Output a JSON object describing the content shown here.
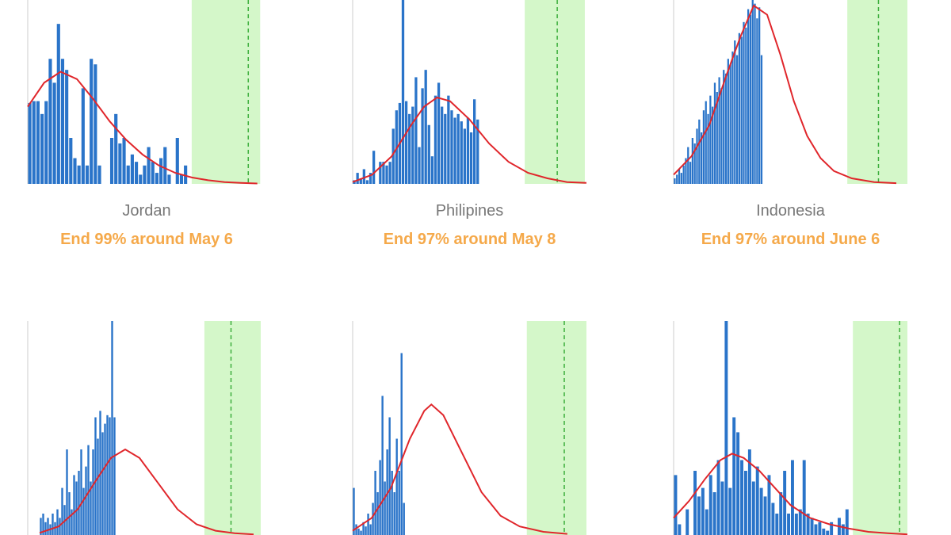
{
  "chart_data": [
    {
      "type": "bar",
      "title": "Jordan",
      "subtitle": "End 99% around May 6",
      "xlim": [
        0,
        58
      ],
      "ylim": [
        0,
        100
      ],
      "color": "#2a74c9",
      "values": [
        44,
        45,
        45,
        38,
        45,
        68,
        55,
        87,
        68,
        62,
        25,
        14,
        10,
        52,
        10,
        68,
        65,
        10,
        0,
        0,
        25,
        38,
        22,
        25,
        10,
        16,
        12,
        5,
        10,
        20,
        12,
        6,
        14,
        20,
        5,
        0,
        25,
        5,
        10,
        0
      ],
      "fit": {
        "color": "#e0262b",
        "x": [
          0,
          4,
          8,
          12,
          16,
          20,
          24,
          28,
          32,
          36,
          40,
          44,
          48,
          52,
          56
        ],
        "values": [
          42,
          55,
          61,
          57,
          46,
          34,
          24,
          16,
          10,
          6,
          3.5,
          2,
          1,
          0.5,
          0.2
        ]
      },
      "shade": [
        40,
        56.7
      ],
      "marker": 53.8
    },
    {
      "type": "bar",
      "title": "Philipines",
      "subtitle": "End 97% around May 8",
      "xlim": [
        0,
        72
      ],
      "ylim": [
        0,
        100
      ],
      "color": "#2a74c9",
      "values": [
        2,
        6,
        3,
        8,
        2,
        6,
        18,
        0,
        12,
        12,
        10,
        12,
        30,
        40,
        44,
        100,
        45,
        38,
        42,
        58,
        20,
        52,
        62,
        32,
        15,
        48,
        55,
        42,
        38,
        48,
        40,
        36,
        38,
        34,
        30,
        36,
        28,
        46,
        35,
        0
      ],
      "fit": {
        "color": "#e0262b",
        "x": [
          0,
          6,
          12,
          18,
          22,
          26,
          30,
          36,
          42,
          48,
          54,
          60,
          66,
          72
        ],
        "values": [
          1,
          5,
          15,
          32,
          42,
          47,
          45,
          35,
          22,
          12,
          6,
          3,
          1,
          0.5
        ]
      },
      "shade": [
        53,
        71.5
      ],
      "marker": 63
    },
    {
      "type": "bar",
      "title": "Indonesia",
      "subtitle": "End 97% around June 6",
      "xlim": [
        0,
        105
      ],
      "ylim": [
        0,
        100
      ],
      "color": "#2a74c9",
      "values": [
        3,
        5,
        8,
        6,
        10,
        14,
        20,
        12,
        25,
        22,
        30,
        35,
        28,
        40,
        45,
        38,
        48,
        42,
        55,
        50,
        58,
        52,
        62,
        60,
        68,
        65,
        72,
        78,
        70,
        82,
        80,
        88,
        85,
        95,
        92,
        100,
        98,
        90,
        96,
        70
      ],
      "fit": {
        "color": "#e0262b",
        "x": [
          0,
          8,
          16,
          24,
          30,
          36,
          42,
          48,
          54,
          60,
          66,
          72,
          80,
          90,
          100
        ],
        "values": [
          5,
          15,
          32,
          60,
          80,
          97,
          92,
          70,
          45,
          26,
          14,
          7,
          3,
          1,
          0.4
        ]
      },
      "shade": [
        78,
        105
      ],
      "marker": 92
    },
    {
      "type": "bar",
      "xlim": [
        -5,
        95
      ],
      "ylim": [
        0,
        100
      ],
      "color": "#2a74c9",
      "values": [
        8,
        10,
        6,
        8,
        5,
        10,
        6,
        12,
        8,
        22,
        14,
        40,
        20,
        12,
        28,
        25,
        30,
        40,
        22,
        32,
        42,
        25,
        40,
        55,
        45,
        58,
        48,
        52,
        56,
        55,
        100,
        55,
        0
      ],
      "fit": {
        "color": "#e0262b",
        "x": [
          0,
          8,
          16,
          24,
          30,
          36,
          42,
          50,
          58,
          66,
          74,
          82,
          90
        ],
        "values": [
          1,
          4,
          12,
          26,
          36,
          40,
          36,
          24,
          12,
          5,
          2,
          0.8,
          0.3
        ]
      },
      "shade": [
        69.3,
        93
      ],
      "marker": 80.5
    },
    {
      "type": "bar",
      "xlim": [
        0,
        98
      ],
      "ylim": [
        0,
        100
      ],
      "color": "#2a74c9",
      "values": [
        22,
        5,
        3,
        2,
        6,
        4,
        10,
        5,
        15,
        30,
        20,
        35,
        65,
        25,
        40,
        55,
        30,
        20,
        45,
        30,
        85,
        15
      ],
      "fit": {
        "color": "#e0262b",
        "x": [
          0,
          8,
          16,
          24,
          30,
          33,
          38,
          46,
          54,
          62,
          70,
          80,
          90
        ],
        "values": [
          2,
          8,
          22,
          45,
          58,
          61,
          56,
          38,
          20,
          9,
          4,
          1.5,
          0.5
        ]
      },
      "shade": [
        73,
        98
      ],
      "marker": 88.7
    },
    {
      "type": "bar",
      "xlim": [
        0,
        60
      ],
      "ylim": [
        0,
        100
      ],
      "color": "#2a74c9",
      "values": [
        28,
        5,
        0,
        12,
        0,
        30,
        18,
        22,
        12,
        28,
        20,
        35,
        25,
        100,
        22,
        55,
        48,
        35,
        30,
        40,
        25,
        32,
        22,
        18,
        28,
        15,
        10,
        20,
        30,
        10,
        35,
        10,
        12,
        35,
        10,
        8,
        5,
        6,
        3,
        2,
        6,
        0,
        8,
        5,
        12
      ],
      "fit": {
        "color": "#e0262b",
        "x": [
          0,
          4,
          8,
          12,
          15,
          18,
          22,
          26,
          30,
          35,
          40,
          45,
          50,
          55,
          60
        ],
        "values": [
          8,
          16,
          26,
          35,
          38,
          36,
          30,
          22,
          14,
          8,
          5,
          3,
          1.5,
          0.8,
          0.3
        ]
      },
      "shade": [
        46,
        60
      ],
      "marker": 58
    }
  ]
}
